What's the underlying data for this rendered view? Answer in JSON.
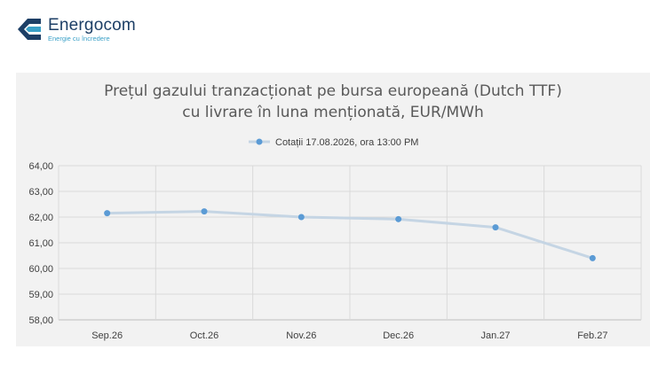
{
  "brand": {
    "name": "Energocom",
    "tagline": "Energie cu încredere",
    "colors": {
      "primary": "#1d3f66",
      "accent": "#3aa0c7"
    }
  },
  "chart_data": {
    "type": "line",
    "title_lines": [
      "Prețul gazului tranzacționat pe bursa europeană (Dutch TTF)",
      "cu livrare în luna menționată, EUR/MWh"
    ],
    "categories": [
      "Sep.26",
      "Oct.26",
      "Nov.26",
      "Dec.26",
      "Jan.27",
      "Feb.27"
    ],
    "series": [
      {
        "name": "Cotații 17.08.2026, ora 13:00 PM",
        "values": [
          62.15,
          62.22,
          62.0,
          61.92,
          61.6,
          60.4
        ],
        "line_color": "#c5d5e4",
        "marker_color": "#5b9bd5"
      }
    ],
    "y_ticks": [
      "58,00",
      "59,00",
      "60,00",
      "61,00",
      "62,00",
      "63,00",
      "64,00"
    ],
    "ylim": [
      58,
      64
    ],
    "grid": true,
    "legend_position": "top"
  }
}
